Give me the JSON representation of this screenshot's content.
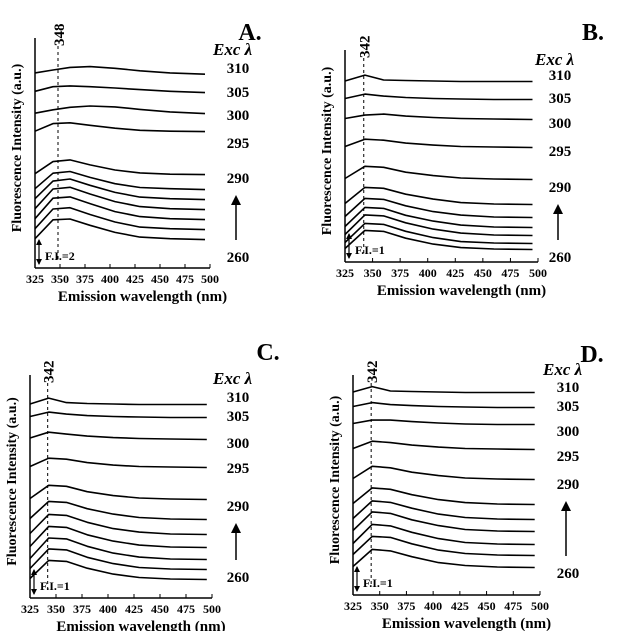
{
  "chart_data": [
    {
      "type": "line",
      "panel_label": "A.",
      "xlabel": "Emission wavelength (nm)",
      "ylabel": "Fluorescence Intensity (a.u.)",
      "xlim": [
        325,
        500
      ],
      "x_ticks": [
        325,
        350,
        375,
        400,
        425,
        450,
        475,
        500
      ],
      "peak_label": "348",
      "peak_x": 348,
      "legend_title": "Exc λ",
      "legend_levels": [
        "310",
        "305",
        "300",
        "295",
        "290",
        "260"
      ],
      "scale_bar": "F.I.=2",
      "series": [
        {
          "values": [
            0.5,
            1.2,
            1.8,
            2.0,
            1.6,
            1.0,
            0.5,
            0.2
          ]
        },
        {
          "values": [
            0.4,
            1.5,
            1.7,
            1.5,
            1.2,
            0.8,
            0.4,
            0.1
          ]
        },
        {
          "values": [
            0.2,
            1.0,
            1.6,
            1.9,
            1.7,
            1.1,
            0.5,
            0.1
          ]
        },
        {
          "values": [
            0.2,
            2.0,
            2.2,
            1.6,
            0.9,
            0.4,
            0.2,
            0.1
          ]
        },
        {
          "values": [
            0.3,
            3.2,
            3.6,
            2.4,
            1.2,
            0.5,
            0.2,
            0.1
          ]
        },
        {
          "values": [
            0.3,
            4.0,
            4.4,
            3.0,
            1.5,
            0.6,
            0.3,
            0.1
          ]
        },
        {
          "values": [
            0.3,
            4.5,
            5.0,
            3.5,
            1.8,
            0.7,
            0.3,
            0.1
          ]
        },
        {
          "values": [
            0.3,
            5.0,
            5.4,
            3.8,
            2.0,
            0.8,
            0.3,
            0.1
          ]
        },
        {
          "values": [
            0.3,
            5.2,
            5.5,
            3.9,
            2.0,
            0.8,
            0.3,
            0.1
          ]
        },
        {
          "values": [
            0.3,
            5.0,
            5.3,
            3.7,
            1.9,
            0.7,
            0.3,
            0.1
          ]
        },
        {
          "values": [
            0.3,
            4.8,
            5.0,
            3.5,
            1.8,
            0.7,
            0.3,
            0.1
          ]
        }
      ]
    },
    {
      "type": "line",
      "panel_label": "B.",
      "xlabel": "Emission wavelength (nm)",
      "ylabel": "Fluorescence Intensity (a.u.)",
      "xlim": [
        325,
        500
      ],
      "x_ticks": [
        325,
        350,
        375,
        400,
        425,
        450,
        475,
        500
      ],
      "peak_label": "342",
      "peak_x": 342,
      "legend_title": "Exc λ",
      "legend_levels": [
        "310",
        "305",
        "300",
        "295",
        "290",
        "260"
      ],
      "scale_bar": "F.I.=1",
      "series": [
        {
          "values": [
            0.2,
            1.4,
            0.4,
            0.3,
            0.2,
            0.1,
            0.1,
            0.1
          ]
        },
        {
          "values": [
            0.3,
            1.2,
            0.8,
            0.5,
            0.3,
            0.2,
            0.1,
            0.1
          ]
        },
        {
          "values": [
            0.3,
            1.0,
            1.2,
            0.8,
            0.5,
            0.3,
            0.2,
            0.1
          ]
        },
        {
          "values": [
            0.3,
            1.8,
            1.6,
            1.0,
            0.6,
            0.3,
            0.2,
            0.1
          ]
        },
        {
          "values": [
            0.3,
            2.8,
            2.6,
            1.6,
            0.9,
            0.4,
            0.2,
            0.1
          ]
        },
        {
          "values": [
            0.3,
            3.6,
            3.4,
            2.2,
            1.2,
            0.5,
            0.2,
            0.1
          ]
        },
        {
          "values": [
            0.3,
            4.0,
            3.8,
            2.5,
            1.3,
            0.6,
            0.2,
            0.1
          ]
        },
        {
          "values": [
            0.3,
            4.2,
            4.0,
            2.6,
            1.4,
            0.6,
            0.2,
            0.1
          ]
        },
        {
          "values": [
            0.3,
            4.3,
            4.1,
            2.7,
            1.4,
            0.6,
            0.2,
            0.1
          ]
        },
        {
          "values": [
            0.3,
            4.2,
            4.0,
            2.6,
            1.3,
            0.5,
            0.2,
            0.1
          ]
        },
        {
          "values": [
            0.3,
            4.0,
            3.8,
            2.4,
            1.2,
            0.5,
            0.2,
            0.1
          ]
        }
      ]
    },
    {
      "type": "line",
      "panel_label": "C.",
      "xlabel": "Emission wavelength (nm)",
      "ylabel": "Fluorescence Intensity (a.u.)",
      "xlim": [
        325,
        500
      ],
      "x_ticks": [
        325,
        350,
        375,
        400,
        425,
        450,
        475,
        500
      ],
      "peak_label": "342",
      "peak_x": 342,
      "legend_title": "Exc λ",
      "legend_levels": [
        "310",
        "305",
        "300",
        "295",
        "290",
        "260"
      ],
      "scale_bar": "F.I.=1",
      "series": [
        {
          "values": [
            0.2,
            1.4,
            0.5,
            0.3,
            0.2,
            0.1,
            0.1,
            0.1
          ]
        },
        {
          "values": [
            0.3,
            1.2,
            0.8,
            0.5,
            0.3,
            0.2,
            0.1,
            0.1
          ]
        },
        {
          "values": [
            0.4,
            1.6,
            1.2,
            0.8,
            0.5,
            0.3,
            0.2,
            0.1
          ]
        },
        {
          "values": [
            0.3,
            2.0,
            1.8,
            1.1,
            0.6,
            0.3,
            0.2,
            0.1
          ]
        },
        {
          "values": [
            0.3,
            3.0,
            2.8,
            1.7,
            0.9,
            0.4,
            0.2,
            0.1
          ]
        },
        {
          "values": [
            0.3,
            3.8,
            3.6,
            2.3,
            1.2,
            0.5,
            0.2,
            0.1
          ]
        },
        {
          "values": [
            0.3,
            4.2,
            4.0,
            2.6,
            1.3,
            0.6,
            0.2,
            0.1
          ]
        },
        {
          "values": [
            0.3,
            4.4,
            4.2,
            2.7,
            1.4,
            0.6,
            0.2,
            0.1
          ]
        },
        {
          "values": [
            0.3,
            4.5,
            4.3,
            2.8,
            1.4,
            0.6,
            0.2,
            0.1
          ]
        },
        {
          "values": [
            0.3,
            4.3,
            4.1,
            2.6,
            1.3,
            0.5,
            0.2,
            0.1
          ]
        },
        {
          "values": [
            0.3,
            4.0,
            3.8,
            2.4,
            1.2,
            0.5,
            0.2,
            0.1
          ]
        }
      ]
    },
    {
      "type": "line",
      "panel_label": "D.",
      "xlabel": "Emission wavelength (nm)",
      "ylabel": "Fluorescence Intensity (a.u.)",
      "xlim": [
        325,
        500
      ],
      "x_ticks": [
        325,
        350,
        375,
        400,
        425,
        450,
        475,
        500
      ],
      "peak_label": "342",
      "peak_x": 342,
      "legend_title": "Exc λ",
      "legend_levels": [
        "310",
        "305",
        "300",
        "295",
        "290",
        "260"
      ],
      "scale_bar": "F.I.=1",
      "series": [
        {
          "values": [
            0.2,
            1.3,
            0.4,
            0.3,
            0.2,
            0.1,
            0.1,
            0.1
          ]
        },
        {
          "values": [
            0.3,
            1.1,
            0.7,
            0.5,
            0.3,
            0.2,
            0.1,
            0.1
          ]
        },
        {
          "values": [
            0.3,
            1.0,
            1.0,
            0.7,
            0.4,
            0.2,
            0.1,
            0.1
          ]
        },
        {
          "values": [
            0.3,
            1.8,
            1.5,
            1.0,
            0.6,
            0.3,
            0.2,
            0.1
          ]
        },
        {
          "values": [
            0.3,
            2.8,
            2.5,
            1.6,
            0.9,
            0.4,
            0.2,
            0.1
          ]
        },
        {
          "values": [
            0.3,
            3.5,
            3.2,
            2.1,
            1.1,
            0.5,
            0.2,
            0.1
          ]
        },
        {
          "values": [
            0.3,
            3.9,
            3.6,
            2.4,
            1.2,
            0.5,
            0.2,
            0.1
          ]
        },
        {
          "values": [
            0.3,
            4.1,
            3.8,
            2.5,
            1.3,
            0.5,
            0.2,
            0.1
          ]
        },
        {
          "values": [
            0.3,
            4.2,
            3.9,
            2.6,
            1.3,
            0.5,
            0.2,
            0.1
          ]
        },
        {
          "values": [
            0.3,
            4.0,
            3.8,
            2.5,
            1.2,
            0.5,
            0.2,
            0.1
          ]
        },
        {
          "values": [
            0.3,
            3.8,
            3.5,
            2.3,
            1.1,
            0.5,
            0.2,
            0.1
          ]
        }
      ]
    }
  ]
}
